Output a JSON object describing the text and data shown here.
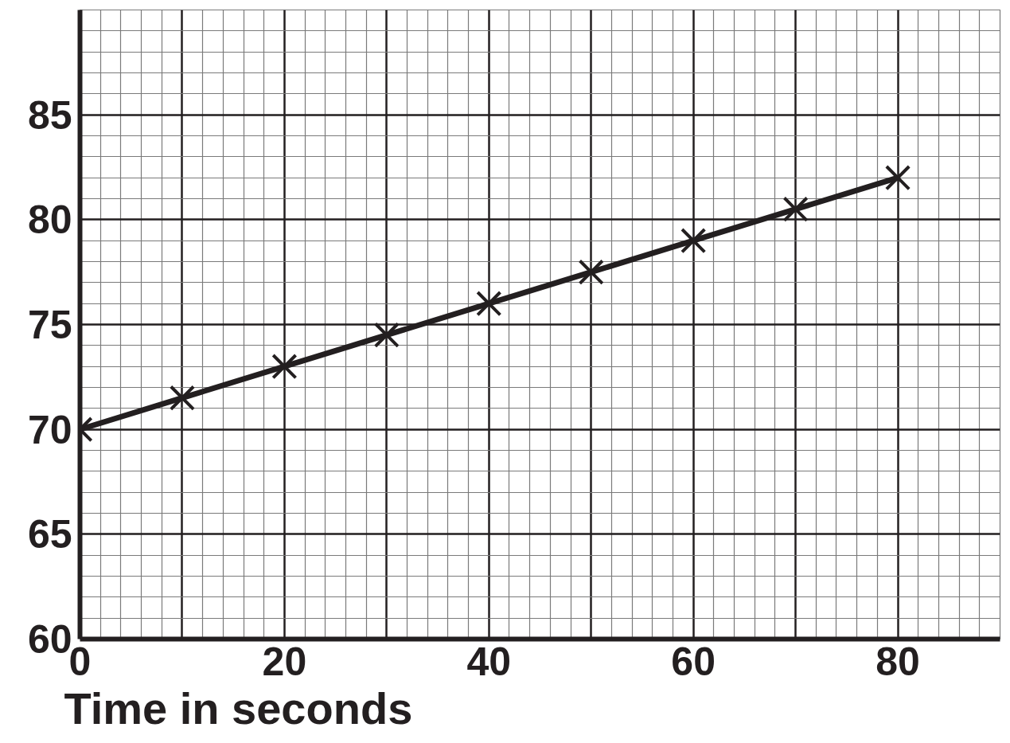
{
  "chart_data": {
    "type": "line",
    "xlabel": "Time in seconds",
    "x": [
      0,
      10,
      20,
      30,
      40,
      50,
      60,
      70,
      80
    ],
    "series": [
      {
        "color": "#231f20",
        "values": [
          70,
          71.5,
          73,
          74.5,
          76,
          77.5,
          79,
          80.5,
          82
        ]
      }
    ],
    "xlim": [
      0,
      90
    ],
    "ylim": [
      60,
      90
    ],
    "xticks": [
      0,
      {
        "value": 10,
        "label": null
      },
      20,
      {
        "value": 30,
        "label": null
      },
      40,
      {
        "value": 50,
        "label": null
      },
      60,
      {
        "value": 70,
        "label": null
      },
      80,
      {
        "value": 90,
        "label": null
      }
    ],
    "yticks": [
      60,
      65,
      70,
      75,
      80,
      85,
      {
        "value": 90,
        "label": null
      }
    ],
    "grid": true,
    "marker": "cross",
    "line_style": "solid"
  }
}
